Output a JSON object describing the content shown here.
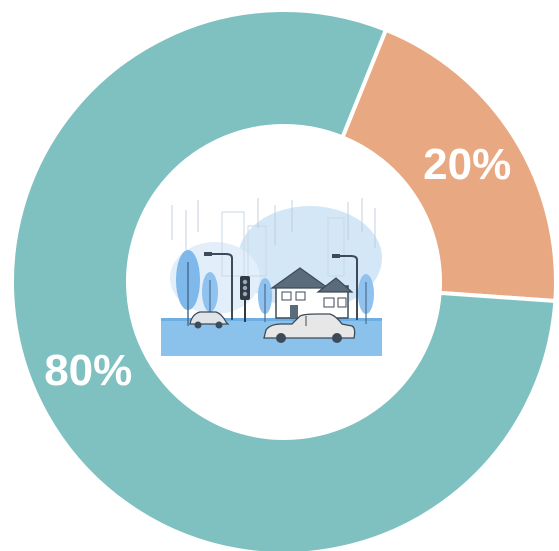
{
  "chart_data": {
    "type": "pie",
    "variant": "donut",
    "title": "",
    "categories": [
      "",
      ""
    ],
    "values": [
      80,
      20
    ],
    "labels": [
      "80%",
      "20%"
    ],
    "colors": [
      "#7fc1c0",
      "#e8a882"
    ],
    "center_image": "flooded-street-illustration"
  },
  "colors": {
    "background": "#ffffff",
    "separator": "#ffffff",
    "label_text": "#ffffff"
  }
}
